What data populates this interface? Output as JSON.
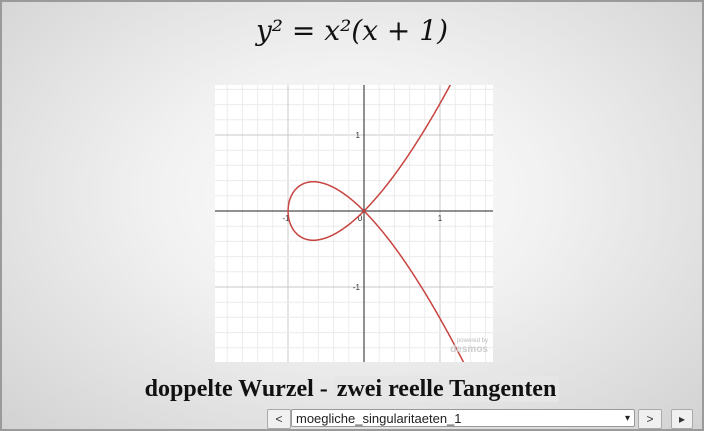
{
  "formula": "y² = x²(x + 1)",
  "graph": {
    "x_tick_labels": [
      "-1",
      "0",
      "1"
    ],
    "y_tick_labels": [
      "1",
      "-1"
    ],
    "watermark": [
      "powered by",
      "desmos"
    ]
  },
  "caption": {
    "text": "doppelte Wurzel - ",
    "highlight": "zwei reelle Tangenten"
  },
  "navigation": {
    "prev": "<",
    "select": "moegliche_singularitaeten_1",
    "next": ">",
    "play": "▸"
  }
}
